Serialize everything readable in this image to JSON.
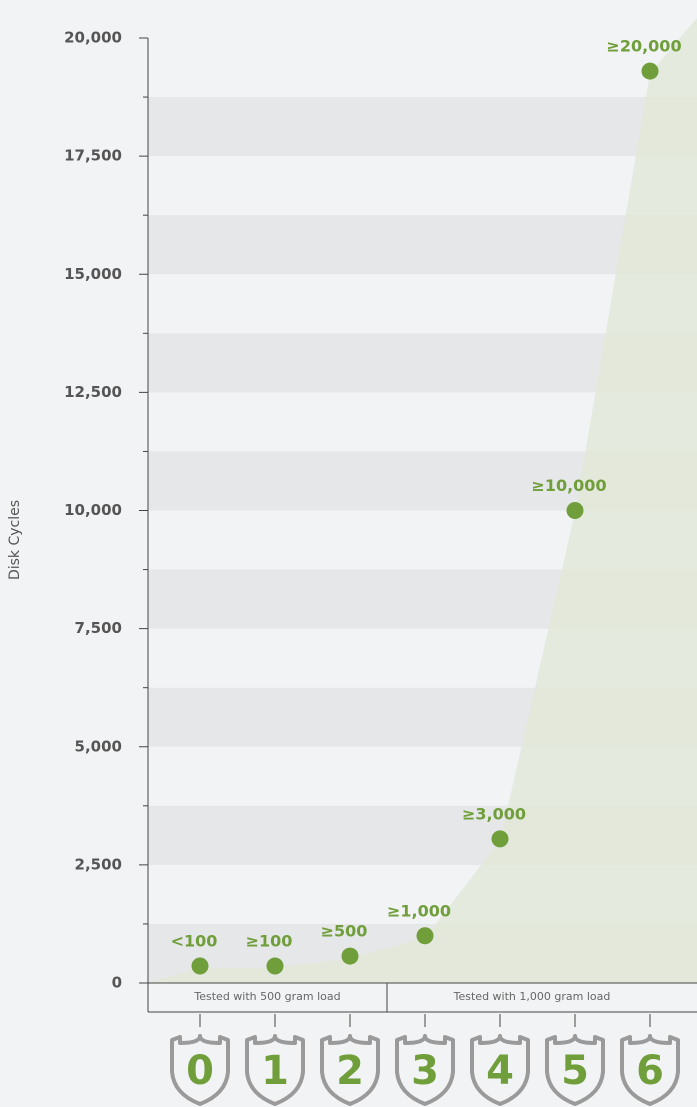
{
  "chart_data": {
    "type": "scatter",
    "y_axis_label": "Disk Cycles",
    "categories": [
      "0",
      "1",
      "2",
      "3",
      "4",
      "5",
      "6"
    ],
    "values": [
      360,
      360,
      570,
      1000,
      3050,
      10000,
      19300
    ],
    "point_labels": [
      "<100",
      "≥100",
      "≥500",
      "≥1,000",
      "≥3,000",
      "≥10,000",
      "≥20,000"
    ],
    "groups": [
      "Tested with 500 gram load",
      "Tested with 1,000 gram load"
    ],
    "color": "#6f9e3a",
    "area_color": "#e2e8d8",
    "ylim": [
      0,
      20000
    ],
    "yticks": [
      0,
      {
        "value": 2500,
        "label": "2,500"
      },
      {
        "value": 5000,
        "label": "5,000"
      },
      {
        "value": 7500,
        "label": "7,500"
      },
      {
        "value": 10000,
        "label": "10,000"
      },
      {
        "value": 12500,
        "label": "12,500"
      },
      {
        "value": 15000,
        "label": "15,000"
      },
      {
        "value": 17500,
        "label": "17,500"
      },
      {
        "value": 20000,
        "label": "20,000"
      }
    ],
    "minor_yticks": [
      1250,
      3750,
      6250,
      8750,
      11250,
      13750,
      16250,
      18750
    ],
    "grid": true
  }
}
